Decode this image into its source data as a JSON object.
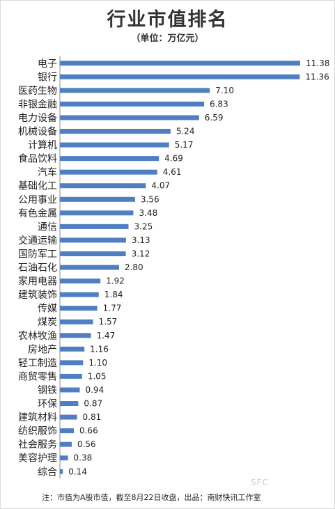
{
  "title": "行业市值排名",
  "subtitle": "（单位：万亿元）",
  "footnote": "注：市值为A股市值，截至8月22日收盘，出品：南财快讯工作室",
  "watermark": "SFC",
  "colors": {
    "bar": "#4f7fc0",
    "text": "#222222"
  },
  "chart_data": {
    "type": "bar",
    "orientation": "horizontal",
    "title": "行业市值排名",
    "subtitle": "（单位：万亿元）",
    "categories": [
      "电子",
      "银行",
      "医药生物",
      "非银金融",
      "电力设备",
      "机械设备",
      "计算机",
      "食品饮料",
      "汽车",
      "基础化工",
      "公用事业",
      "有色金属",
      "通信",
      "交通运输",
      "国防军工",
      "石油石化",
      "家用电器",
      "建筑装饰",
      "传媒",
      "煤炭",
      "农林牧渔",
      "房地产",
      "轻工制造",
      "商贸零售",
      "钢铁",
      "环保",
      "建筑材料",
      "纺织服饰",
      "社会服务",
      "美容护理",
      "综合"
    ],
    "values": [
      11.38,
      11.36,
      7.1,
      6.83,
      6.59,
      5.24,
      5.17,
      4.69,
      4.61,
      4.07,
      3.56,
      3.48,
      3.25,
      3.13,
      3.12,
      2.8,
      1.92,
      1.84,
      1.77,
      1.57,
      1.47,
      1.16,
      1.1,
      1.05,
      0.94,
      0.87,
      0.81,
      0.66,
      0.56,
      0.38,
      0.14
    ],
    "value_labels": [
      "11.38",
      "11.36",
      "7.10",
      "6.83",
      "6.59",
      "5.24",
      "5.17",
      "4.69",
      "4.61",
      "4.07",
      "3.56",
      "3.48",
      "3.25",
      "3.13",
      "3.12",
      "2.80",
      "1.92",
      "1.84",
      "1.77",
      "1.57",
      "1.47",
      "1.16",
      "1.10",
      "1.05",
      "0.94",
      "0.87",
      "0.81",
      "0.66",
      "0.56",
      "0.38",
      "0.14"
    ],
    "xlim": [
      0,
      11.38
    ],
    "grid": false,
    "legend": "none"
  }
}
